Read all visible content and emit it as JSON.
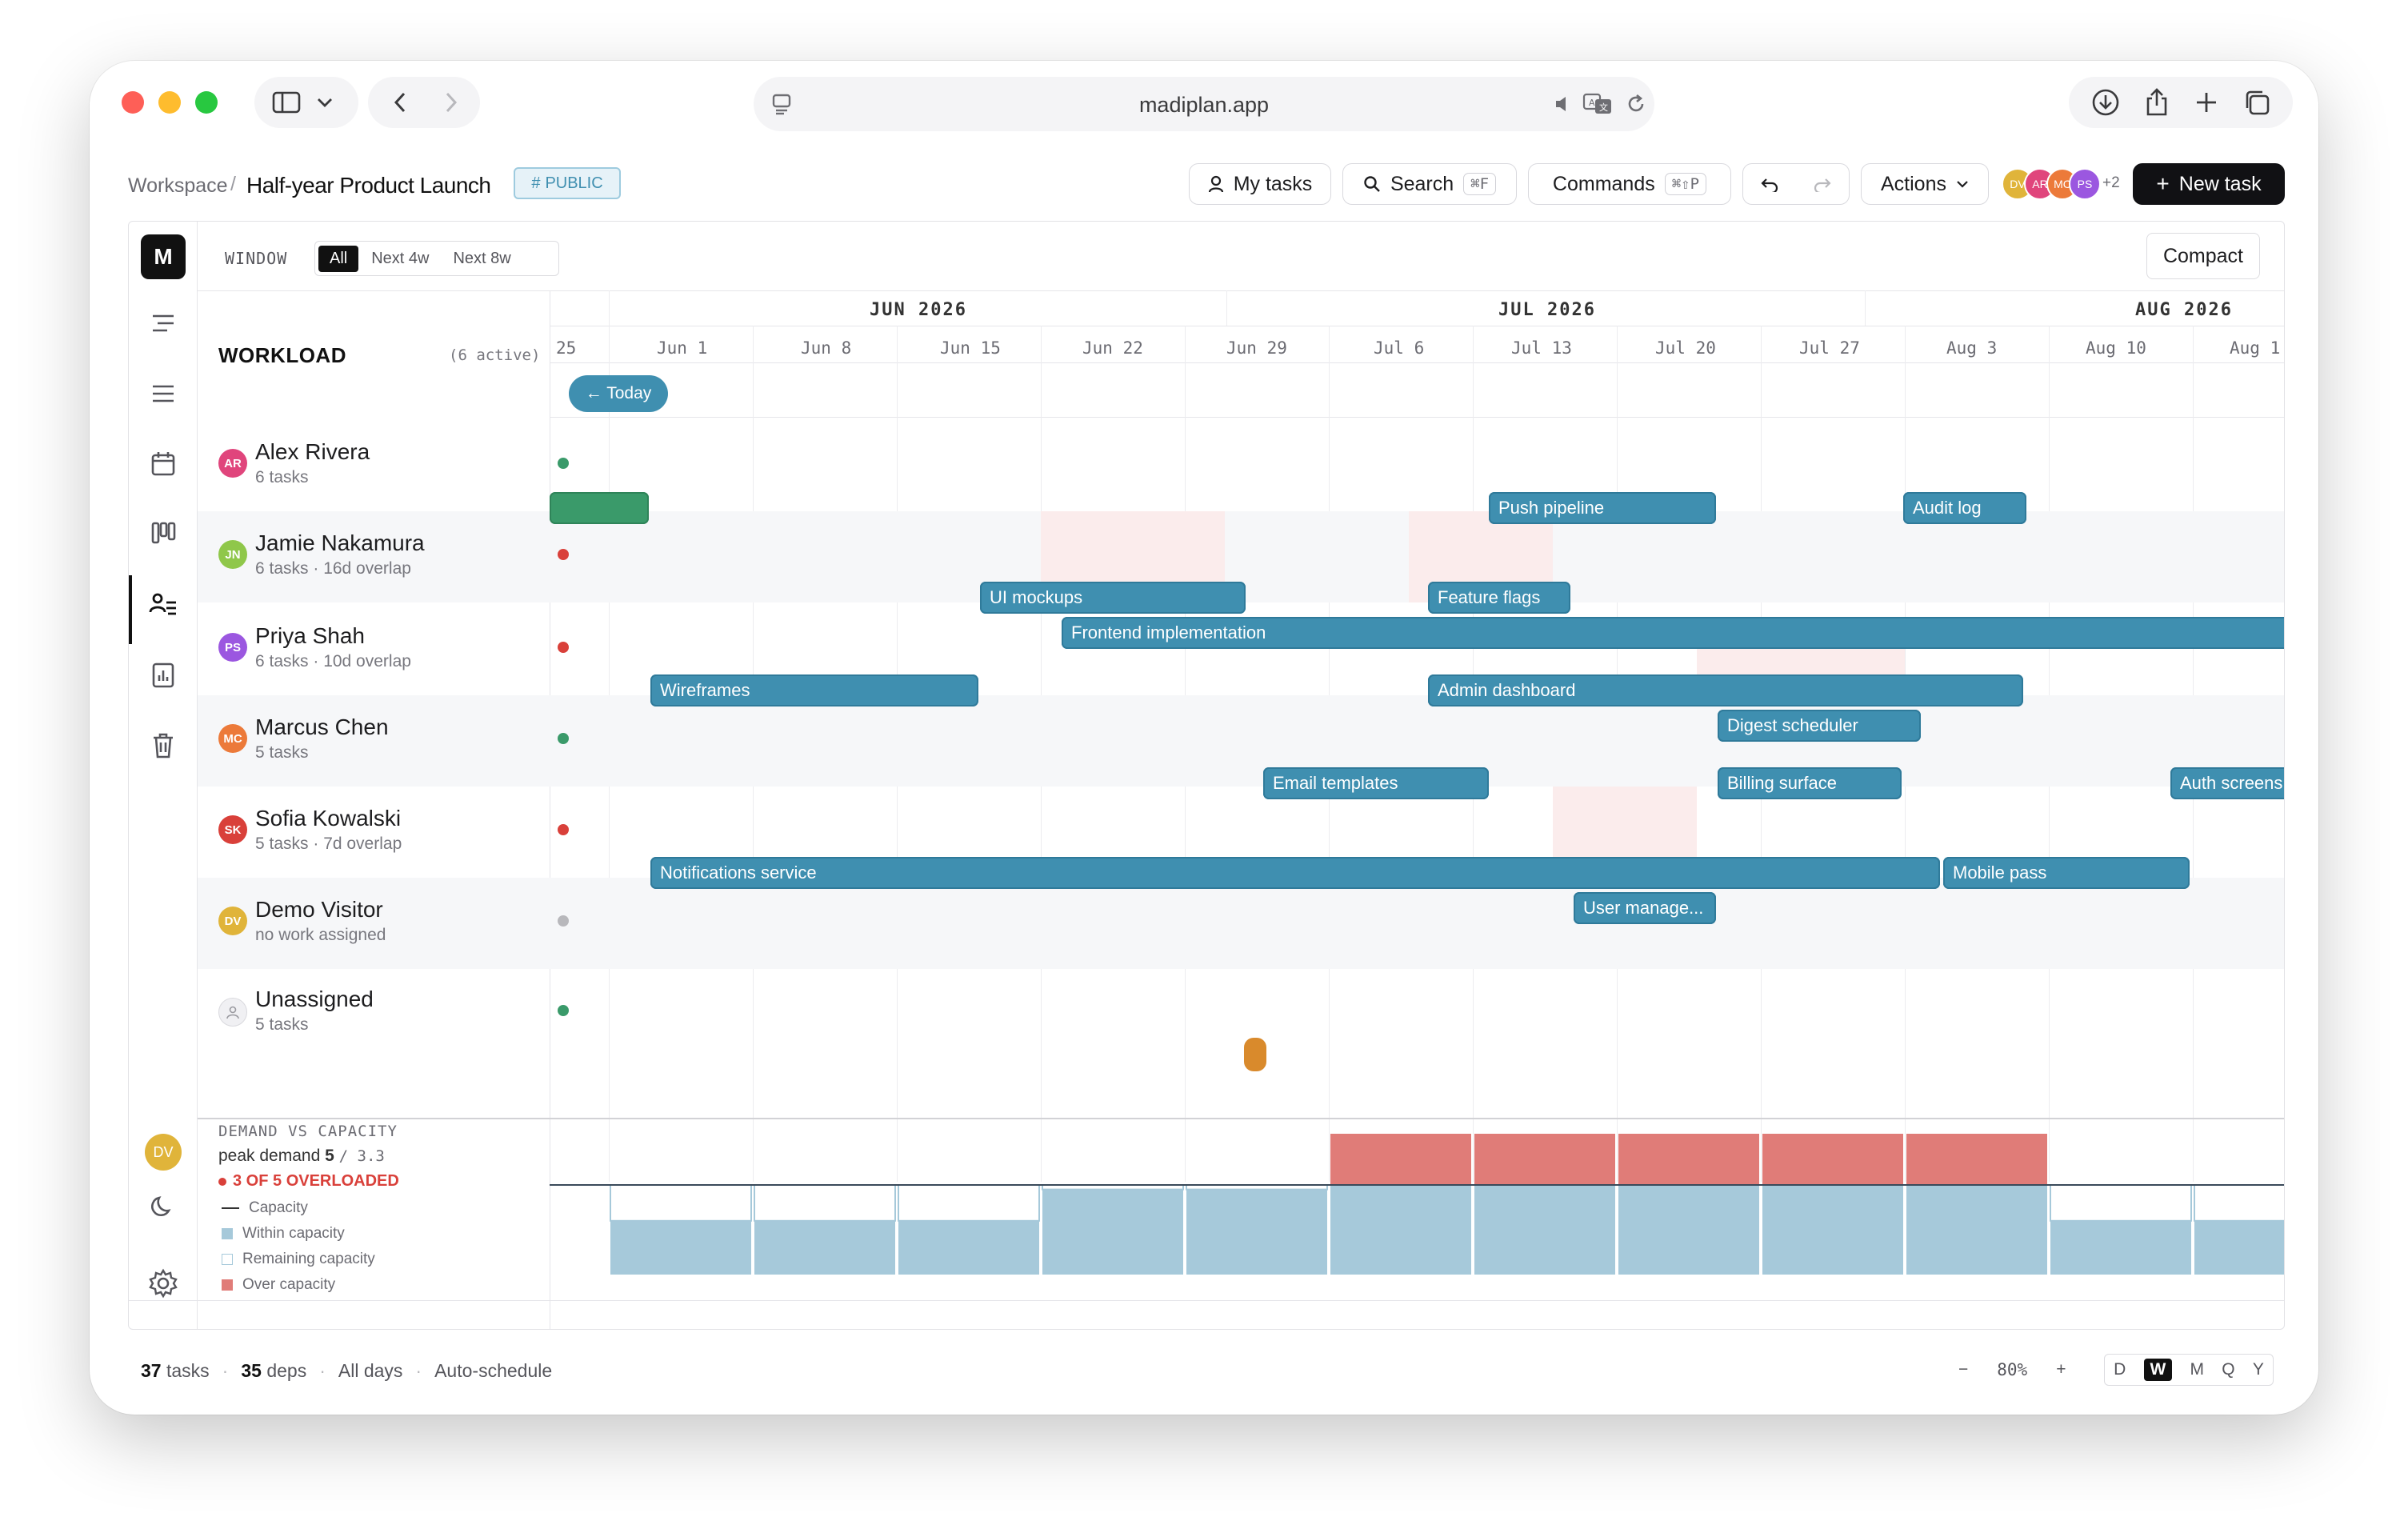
{
  "browser": {
    "url": "madiplan.app"
  },
  "header": {
    "breadcrumb_root": "Workspace",
    "breadcrumb_sep": "/",
    "project_title": "Half-year Product Launch",
    "visibility_badge": "PUBLIC",
    "my_tasks": "My tasks",
    "search": "Search",
    "search_kbd": "⌘F",
    "commands": "Commands",
    "commands_kbd": "⌘⇧P",
    "actions": "Actions",
    "avatars": [
      "DV",
      "AR",
      "MC",
      "PS"
    ],
    "avatar_more": "+2",
    "new_task": "New task"
  },
  "toolbar": {
    "logo": "M",
    "window_label": "WINDOW",
    "window_options": [
      "All",
      "Next 4w",
      "Next 8w"
    ],
    "window_selected": "All",
    "compact": "Compact"
  },
  "timeline": {
    "months": [
      "JUN 2026",
      "JUL 2026",
      "AUG 2026"
    ],
    "weeks": [
      "25",
      "Jun 1",
      "Jun 8",
      "Jun 15",
      "Jun 22",
      "Jun 29",
      "Jul 6",
      "Jul 13",
      "Jul 20",
      "Jul 27",
      "Aug 3",
      "Aug 10",
      "Aug 1"
    ],
    "today_label": "← Today"
  },
  "workload": {
    "title": "WORKLOAD",
    "active_count": "(6 active)",
    "people": [
      {
        "initials": "AR",
        "name": "Alex Rivera",
        "sub": "6 tasks",
        "status": "ok"
      },
      {
        "initials": "JN",
        "name": "Jamie Nakamura",
        "sub": "6 tasks · 16d overlap",
        "status": "over"
      },
      {
        "initials": "PS",
        "name": "Priya Shah",
        "sub": "6 tasks · 10d overlap",
        "status": "over"
      },
      {
        "initials": "MC",
        "name": "Marcus Chen",
        "sub": "5 tasks",
        "status": "ok"
      },
      {
        "initials": "SK",
        "name": "Sofia Kowalski",
        "sub": "5 tasks · 7d overlap",
        "status": "over"
      },
      {
        "initials": "DV",
        "name": "Demo Visitor",
        "sub": "no work assigned",
        "status": "none"
      },
      {
        "initials": "",
        "name": "Unassigned",
        "sub": "5 tasks",
        "status": "ok"
      }
    ]
  },
  "tasks": {
    "push_pipeline": "Push pipeline",
    "audit_log": "Audit log",
    "ui_mockups": "UI mockups",
    "feature_flags": "Feature flags",
    "frontend_impl": "Frontend implementation",
    "wireframes": "Wireframes",
    "admin_dashboard": "Admin dashboard",
    "digest_scheduler": "Digest scheduler",
    "email_templates": "Email templates",
    "billing_surface": "Billing surface",
    "auth_screens": "Auth screens",
    "notifications_service": "Notifications service",
    "mobile_pass": "Mobile pass",
    "user_manage": "User manage..."
  },
  "capacity": {
    "title": "DEMAND VS CAPACITY",
    "peak_label": "peak demand",
    "peak_value": "5",
    "peak_cap": "/ 3.3",
    "overloaded": "3 OF 5 OVERLOADED",
    "legend": [
      "Capacity",
      "Within capacity",
      "Remaining capacity",
      "Over capacity"
    ],
    "weekly_level": [
      0.6,
      0.6,
      0.6,
      0.95,
      0.95,
      1,
      1,
      1,
      1,
      1,
      0.6,
      0.6
    ],
    "weekly_over": [
      false,
      false,
      false,
      false,
      false,
      true,
      true,
      true,
      true,
      true,
      false,
      false
    ]
  },
  "footer": {
    "tasks_count": "37",
    "tasks_label": "tasks",
    "deps_count": "35",
    "deps_label": "deps",
    "days": "All days",
    "autoschedule": "Auto-schedule",
    "zoom_minus": "−",
    "zoom": "80%",
    "zoom_plus": "+",
    "scales": [
      "D",
      "W",
      "M",
      "Q",
      "Y"
    ],
    "scale_selected": "W"
  },
  "colors": {
    "accent": "#3f8fb0",
    "green": "#3a9a6a",
    "red": "#d9403a",
    "over": "#e07c78",
    "within": "#a6c9da"
  }
}
